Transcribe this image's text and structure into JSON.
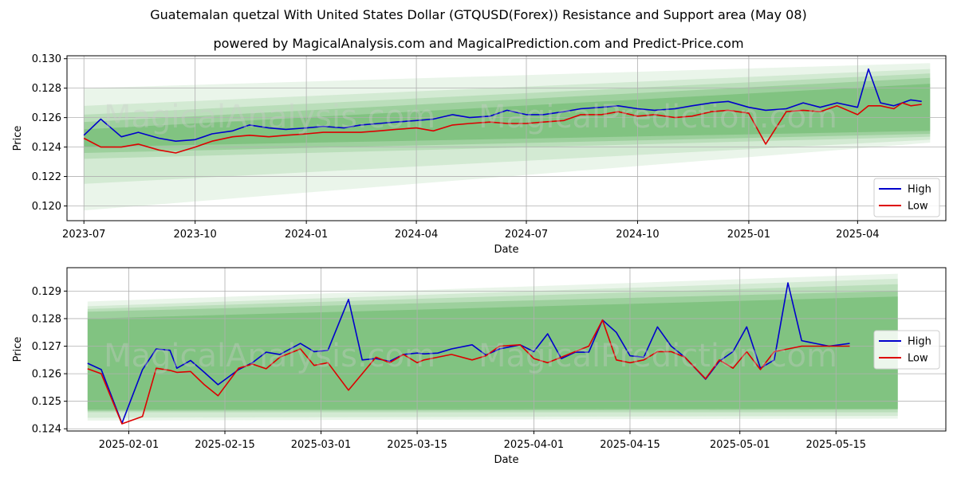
{
  "title": "Guatemalan quetzal With United States Dollar (GTQUSD(Forex)) Resistance and Support area (May 08)",
  "subtitle": "powered by MagicalAnalysis.com and MagicalPrediction.com and Predict-Price.com",
  "watermarks": [
    "MagicalAnalysis.com",
    "MagicalPrediction.com"
  ],
  "colors": {
    "high": "#0000cc",
    "low": "#dd0000",
    "band": "#2e9a2e"
  },
  "chart_data": [
    {
      "type": "line",
      "xlabel": "Date",
      "ylabel": "Price",
      "xlim": [
        "2023-06-17",
        "2025-06-13"
      ],
      "ylim": [
        0.119,
        0.1302
      ],
      "x_ticks": [
        "2023-07",
        "2023-10",
        "2024-01",
        "2024-04",
        "2024-07",
        "2024-10",
        "2025-01",
        "2025-04"
      ],
      "y_ticks": [
        0.12,
        0.122,
        0.124,
        0.126,
        0.128,
        0.13
      ],
      "y_tick_labels": [
        "0.120",
        "0.122",
        "0.124",
        "0.126",
        "0.128",
        "0.130"
      ],
      "legend": {
        "position": "lower-right",
        "entries": [
          "High",
          "Low"
        ]
      },
      "grid": true,
      "bands": [
        {
          "x": [
            "2023-07-01",
            "2025-05-31"
          ],
          "upper": [
            0.128,
            0.1297
          ],
          "lower": [
            0.1197,
            0.1243
          ],
          "opacity": 0.1
        },
        {
          "x": [
            "2023-07-01",
            "2025-05-31"
          ],
          "upper": [
            0.1268,
            0.1293
          ],
          "lower": [
            0.1215,
            0.1245
          ],
          "opacity": 0.12
        },
        {
          "x": [
            "2023-07-01",
            "2025-05-31"
          ],
          "upper": [
            0.1262,
            0.129
          ],
          "lower": [
            0.1232,
            0.1247
          ],
          "opacity": 0.15
        },
        {
          "x": [
            "2023-07-01",
            "2025-05-31"
          ],
          "upper": [
            0.1257,
            0.1287
          ],
          "lower": [
            0.1236,
            0.1249
          ],
          "opacity": 0.2
        },
        {
          "x": [
            "2023-07-01",
            "2025-05-31"
          ],
          "upper": [
            0.1252,
            0.1283
          ],
          "lower": [
            0.124,
            0.1251
          ],
          "opacity": 0.25
        }
      ],
      "series": [
        {
          "name": "High",
          "x": [
            "2023-07-01",
            "2023-07-15",
            "2023-08-01",
            "2023-08-15",
            "2023-09-01",
            "2023-09-15",
            "2023-10-01",
            "2023-10-15",
            "2023-11-01",
            "2023-11-15",
            "2023-12-01",
            "2023-12-15",
            "2024-01-01",
            "2024-01-15",
            "2024-02-01",
            "2024-02-15",
            "2024-03-01",
            "2024-03-15",
            "2024-04-01",
            "2024-04-15",
            "2024-05-01",
            "2024-05-15",
            "2024-06-01",
            "2024-06-15",
            "2024-07-01",
            "2024-07-15",
            "2024-08-01",
            "2024-08-15",
            "2024-09-01",
            "2024-09-15",
            "2024-10-01",
            "2024-10-15",
            "2024-11-01",
            "2024-11-15",
            "2024-12-01",
            "2024-12-15",
            "2025-01-01",
            "2025-01-15",
            "2025-02-01",
            "2025-02-15",
            "2025-03-01",
            "2025-03-15",
            "2025-04-01",
            "2025-04-10",
            "2025-04-20",
            "2025-05-01",
            "2025-05-08",
            "2025-05-15",
            "2025-05-24"
          ],
          "y": [
            0.1248,
            0.1259,
            0.1247,
            0.125,
            0.1246,
            0.1244,
            0.1245,
            0.1249,
            0.1251,
            0.1255,
            0.1253,
            0.1252,
            0.1253,
            0.1254,
            0.1253,
            0.1255,
            0.1256,
            0.1257,
            0.1258,
            0.1259,
            0.1262,
            0.126,
            0.1261,
            0.1265,
            0.1262,
            0.1262,
            0.1264,
            0.1266,
            0.1267,
            0.1268,
            0.1266,
            0.1265,
            0.1266,
            0.1268,
            0.127,
            0.1271,
            0.1267,
            0.1265,
            0.1266,
            0.127,
            0.1267,
            0.127,
            0.1267,
            0.1293,
            0.127,
            0.1268,
            0.127,
            0.1272,
            0.1271
          ]
        },
        {
          "name": "Low",
          "x": [
            "2023-07-01",
            "2023-07-15",
            "2023-08-01",
            "2023-08-15",
            "2023-09-01",
            "2023-09-15",
            "2023-10-01",
            "2023-10-15",
            "2023-11-01",
            "2023-11-15",
            "2023-12-01",
            "2023-12-15",
            "2024-01-01",
            "2024-01-15",
            "2024-02-01",
            "2024-02-15",
            "2024-03-01",
            "2024-03-15",
            "2024-04-01",
            "2024-04-15",
            "2024-05-01",
            "2024-05-15",
            "2024-06-01",
            "2024-06-15",
            "2024-07-01",
            "2024-07-15",
            "2024-08-01",
            "2024-08-15",
            "2024-09-01",
            "2024-09-15",
            "2024-10-01",
            "2024-10-15",
            "2024-11-01",
            "2024-11-15",
            "2024-12-01",
            "2024-12-15",
            "2025-01-01",
            "2025-01-15",
            "2025-02-01",
            "2025-02-15",
            "2025-03-01",
            "2025-03-15",
            "2025-04-01",
            "2025-04-10",
            "2025-04-20",
            "2025-05-01",
            "2025-05-08",
            "2025-05-15",
            "2025-05-24"
          ],
          "y": [
            0.1246,
            0.124,
            0.124,
            0.1242,
            0.1238,
            0.1236,
            0.124,
            0.1244,
            0.1247,
            0.1248,
            0.1247,
            0.1248,
            0.1249,
            0.125,
            0.125,
            0.125,
            0.1251,
            0.1252,
            0.1253,
            0.1251,
            0.1255,
            0.1256,
            0.1257,
            0.1256,
            0.1256,
            0.1257,
            0.1258,
            0.1262,
            0.1262,
            0.1264,
            0.1261,
            0.1262,
            0.126,
            0.1261,
            0.1264,
            0.1265,
            0.1263,
            0.1242,
            0.1264,
            0.1265,
            0.1264,
            0.1268,
            0.1262,
            0.1268,
            0.1268,
            0.1266,
            0.127,
            0.1268,
            0.1269
          ]
        }
      ]
    },
    {
      "type": "line",
      "xlabel": "Date",
      "ylabel": "Price",
      "xlim": [
        "2025-01-23",
        "2025-05-31"
      ],
      "ylim": [
        0.12392,
        0.12985
      ],
      "x_ticks": [
        "2025-02-01",
        "2025-02-15",
        "2025-03-01",
        "2025-03-15",
        "2025-04-01",
        "2025-04-15",
        "2025-05-01",
        "2025-05-15"
      ],
      "y_ticks": [
        0.124,
        0.125,
        0.126,
        0.127,
        0.128,
        0.129
      ],
      "y_tick_labels": [
        "0.124",
        "0.125",
        "0.126",
        "0.127",
        "0.128",
        "0.129"
      ],
      "legend": {
        "position": "center-right",
        "entries": [
          "High",
          "Low"
        ]
      },
      "grid": true,
      "bands": [
        {
          "x": [
            "2025-01-26",
            "2025-05-24"
          ],
          "upper": [
            0.12862,
            0.12963
          ],
          "lower": [
            0.1243,
            0.12437
          ],
          "opacity": 0.1
        },
        {
          "x": [
            "2025-01-26",
            "2025-05-24"
          ],
          "upper": [
            0.12845,
            0.12945
          ],
          "lower": [
            0.1244,
            0.12447
          ],
          "opacity": 0.12
        },
        {
          "x": [
            "2025-01-26",
            "2025-05-24"
          ],
          "upper": [
            0.12835,
            0.12925
          ],
          "lower": [
            0.1246,
            0.1246
          ],
          "opacity": 0.15
        },
        {
          "x": [
            "2025-01-26",
            "2025-05-24"
          ],
          "upper": [
            0.12825,
            0.129
          ],
          "lower": [
            0.1247,
            0.12473
          ],
          "opacity": 0.2
        },
        {
          "x": [
            "2025-01-26",
            "2025-05-24"
          ],
          "upper": [
            0.128,
            0.1288
          ],
          "lower": [
            0.12465,
            0.1247
          ],
          "opacity": 0.25
        }
      ],
      "series": [
        {
          "name": "High",
          "x": [
            "2025-01-26",
            "2025-01-28",
            "2025-01-31",
            "2025-02-03",
            "2025-02-05",
            "2025-02-07",
            "2025-02-08",
            "2025-02-10",
            "2025-02-12",
            "2025-02-14",
            "2025-02-17",
            "2025-02-19",
            "2025-02-21",
            "2025-02-23",
            "2025-02-26",
            "2025-02-28",
            "2025-03-02",
            "2025-03-05",
            "2025-03-07",
            "2025-03-09",
            "2025-03-11",
            "2025-03-13",
            "2025-03-15",
            "2025-03-16",
            "2025-03-18",
            "2025-03-20",
            "2025-03-23",
            "2025-03-25",
            "2025-03-27",
            "2025-03-30",
            "2025-04-01",
            "2025-04-03",
            "2025-04-05",
            "2025-04-07",
            "2025-04-09",
            "2025-04-11",
            "2025-04-13",
            "2025-04-15",
            "2025-04-17",
            "2025-04-19",
            "2025-04-21",
            "2025-04-23",
            "2025-04-26",
            "2025-04-28",
            "2025-04-30",
            "2025-05-02",
            "2025-05-04",
            "2025-05-06",
            "2025-05-08",
            "2025-05-10",
            "2025-05-12",
            "2025-05-14",
            "2025-05-17"
          ],
          "y": [
            0.12638,
            0.12615,
            0.1242,
            0.12615,
            0.1269,
            0.12685,
            0.1262,
            0.12648,
            0.12605,
            0.1256,
            0.12615,
            0.1264,
            0.12678,
            0.1267,
            0.1271,
            0.1268,
            0.12685,
            0.1287,
            0.1265,
            0.12655,
            0.12645,
            0.1267,
            0.12675,
            0.12672,
            0.12675,
            0.1269,
            0.12705,
            0.12668,
            0.1269,
            0.12705,
            0.1268,
            0.12745,
            0.12655,
            0.12678,
            0.12678,
            0.12795,
            0.1275,
            0.12665,
            0.1266,
            0.1277,
            0.127,
            0.1266,
            0.1258,
            0.12645,
            0.1268,
            0.1277,
            0.1262,
            0.1265,
            0.1293,
            0.1272,
            0.1271,
            0.127,
            0.1271
          ]
        },
        {
          "name": "Low",
          "x": [
            "2025-01-26",
            "2025-01-28",
            "2025-01-31",
            "2025-02-03",
            "2025-02-05",
            "2025-02-07",
            "2025-02-08",
            "2025-02-10",
            "2025-02-12",
            "2025-02-14",
            "2025-02-17",
            "2025-02-19",
            "2025-02-21",
            "2025-02-23",
            "2025-02-26",
            "2025-02-28",
            "2025-03-02",
            "2025-03-05",
            "2025-03-07",
            "2025-03-09",
            "2025-03-11",
            "2025-03-13",
            "2025-03-15",
            "2025-03-16",
            "2025-03-18",
            "2025-03-20",
            "2025-03-23",
            "2025-03-25",
            "2025-03-27",
            "2025-03-30",
            "2025-04-01",
            "2025-04-03",
            "2025-04-05",
            "2025-04-07",
            "2025-04-09",
            "2025-04-11",
            "2025-04-13",
            "2025-04-15",
            "2025-04-17",
            "2025-04-19",
            "2025-04-21",
            "2025-04-23",
            "2025-04-26",
            "2025-04-28",
            "2025-04-30",
            "2025-05-02",
            "2025-05-04",
            "2025-05-06",
            "2025-05-08",
            "2025-05-10",
            "2025-05-12",
            "2025-05-14",
            "2025-05-17"
          ],
          "y": [
            0.12618,
            0.126,
            0.12418,
            0.12445,
            0.1262,
            0.12612,
            0.12605,
            0.12608,
            0.1256,
            0.1252,
            0.1262,
            0.12635,
            0.12618,
            0.1266,
            0.1269,
            0.1263,
            0.1264,
            0.1254,
            0.126,
            0.1266,
            0.1264,
            0.1267,
            0.1264,
            0.1265,
            0.1266,
            0.1267,
            0.1265,
            0.12665,
            0.127,
            0.12705,
            0.12655,
            0.1264,
            0.1266,
            0.1268,
            0.127,
            0.12795,
            0.1265,
            0.1264,
            0.1265,
            0.1268,
            0.1268,
            0.1266,
            0.12582,
            0.1265,
            0.1262,
            0.1268,
            0.12615,
            0.1268,
            0.1269,
            0.127,
            0.127,
            0.127,
            0.127
          ]
        }
      ]
    }
  ]
}
